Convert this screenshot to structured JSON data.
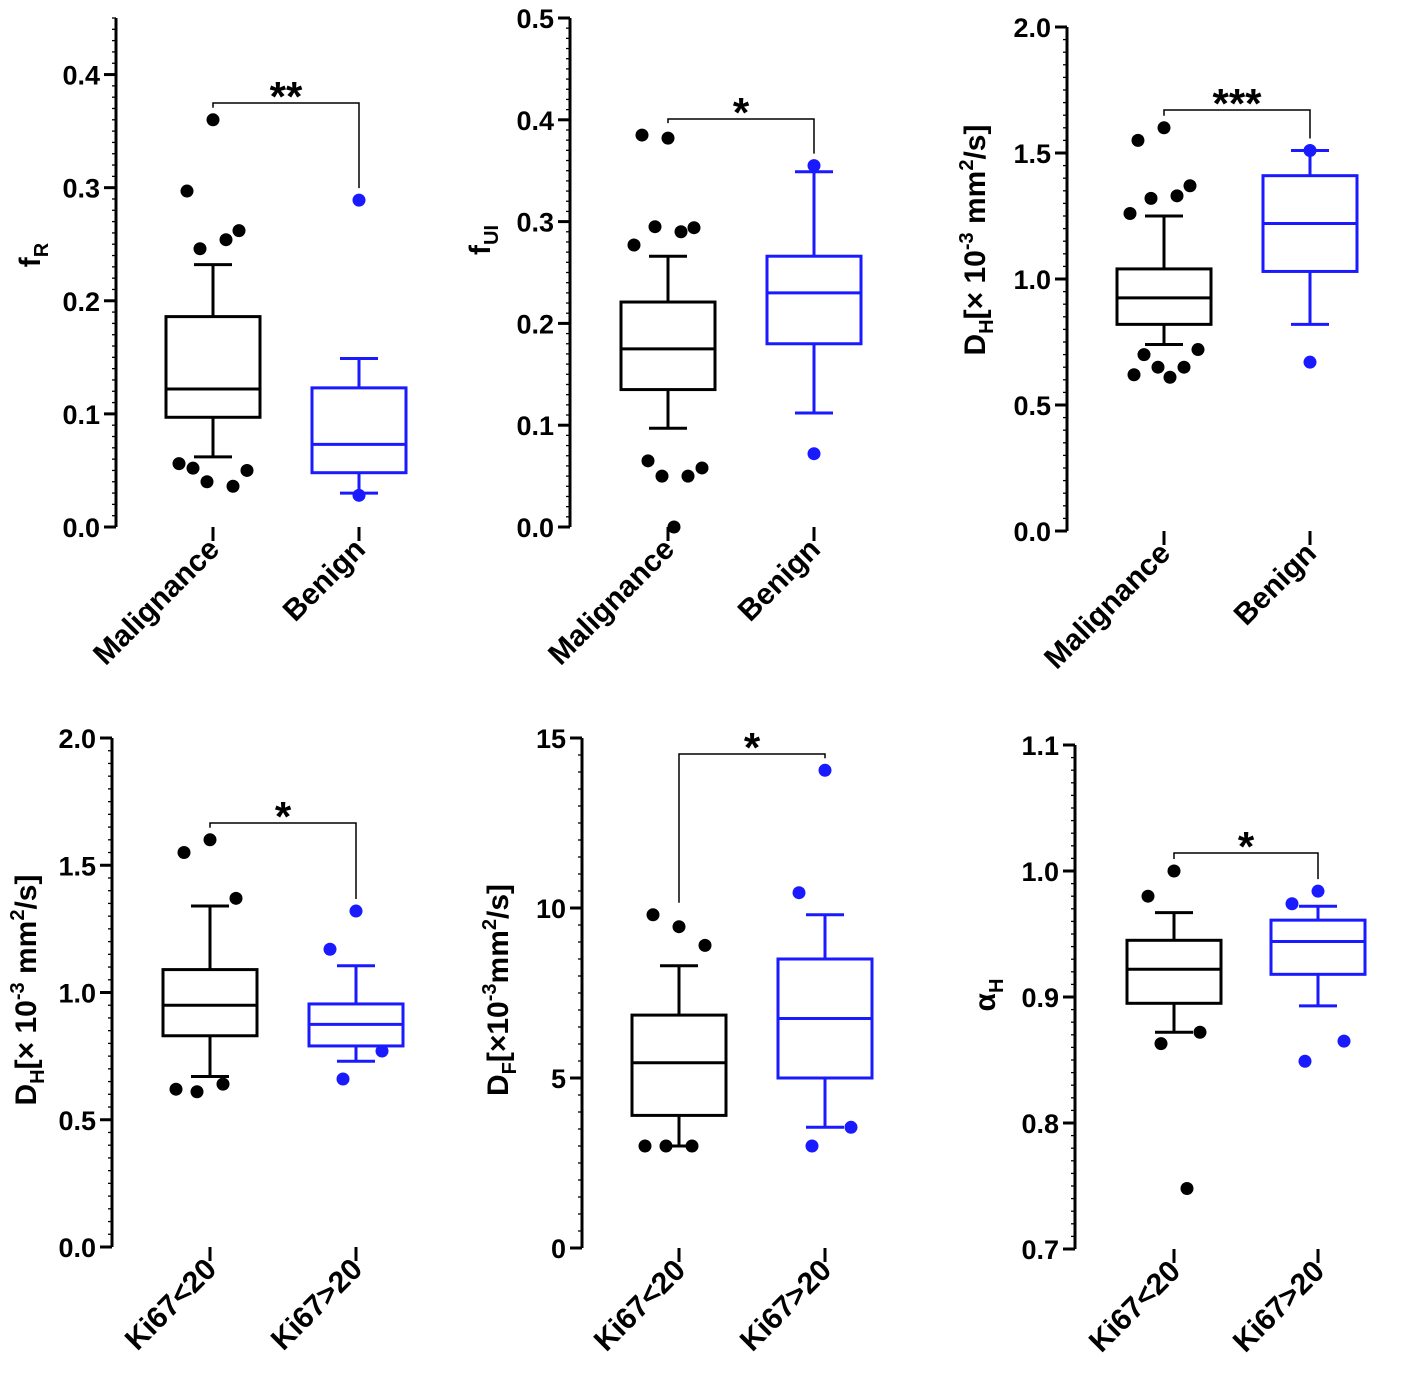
{
  "figure": "Box plots of diffusion parameters by group",
  "colors": {
    "group1": "#000000",
    "group2": "#1a1aff",
    "axis": "#000000"
  },
  "chart_data": [
    {
      "type": "box",
      "ylabel_main": "f",
      "ylabel_sub": "R",
      "ylim": [
        0,
        0.45
      ],
      "yticks": [
        0.0,
        0.1,
        0.2,
        0.3,
        0.4
      ],
      "yticklabels": [
        "0.0",
        "0.1",
        "0.2",
        "0.3",
        "0.4"
      ],
      "categories": [
        "Malignance",
        "Benign"
      ],
      "significance": "**",
      "boxes": [
        {
          "name": "Malignance",
          "min": 0.062,
          "q1": 0.097,
          "median": 0.122,
          "q3": 0.186,
          "max": 0.232,
          "outliers": [
            0.36,
            0.297,
            0.262,
            0.246,
            0.254,
            0.056,
            0.05,
            0.052,
            0.036,
            0.04
          ]
        },
        {
          "name": "Benign",
          "min": 0.03,
          "q1": 0.048,
          "median": 0.073,
          "q3": 0.123,
          "max": 0.149,
          "outliers": [
            0.289,
            0.028
          ]
        }
      ]
    },
    {
      "type": "box",
      "ylabel_main": "f",
      "ylabel_sub": "UI",
      "ylim": [
        0,
        0.5
      ],
      "yticks": [
        0.0,
        0.1,
        0.2,
        0.3,
        0.4,
        0.5
      ],
      "yticklabels": [
        "0.0",
        "0.1",
        "0.2",
        "0.3",
        "0.4",
        "0.5"
      ],
      "categories": [
        "Malignance",
        "Benign"
      ],
      "significance": "*",
      "boxes": [
        {
          "name": "Malignance",
          "min": 0.097,
          "q1": 0.135,
          "median": 0.175,
          "q3": 0.221,
          "max": 0.266,
          "outliers": [
            0.382,
            0.385,
            0.294,
            0.295,
            0.29,
            0.277,
            0.058,
            0.065,
            0.05,
            0.05,
            0.0
          ]
        },
        {
          "name": "Benign",
          "min": 0.112,
          "q1": 0.18,
          "median": 0.23,
          "q3": 0.266,
          "max": 0.349,
          "outliers": [
            0.355,
            0.072
          ]
        }
      ]
    },
    {
      "type": "box",
      "ylabel_main": "D",
      "ylabel_sub": "H",
      "ylabel_mid": "[× 10",
      "ylabel_sup": "-3",
      "ylabel_rest": " mm",
      "ylabel_sup2": "2",
      "ylabel_end": "/s]",
      "ylim": [
        0,
        2.0
      ],
      "yticks": [
        0.0,
        0.5,
        1.0,
        1.5,
        2.0
      ],
      "yticklabels": [
        "0.0",
        "0.5",
        "1.0",
        "1.5",
        "2.0"
      ],
      "categories": [
        "Malignance",
        "Benign"
      ],
      "significance": "***",
      "boxes": [
        {
          "name": "Malignance",
          "min": 0.74,
          "q1": 0.82,
          "median": 0.925,
          "q3": 1.04,
          "max": 1.25,
          "outliers": [
            1.6,
            1.55,
            1.37,
            1.32,
            1.33,
            1.26,
            0.72,
            0.7,
            0.65,
            0.65,
            0.61,
            0.62
          ]
        },
        {
          "name": "Benign",
          "min": 0.82,
          "q1": 1.03,
          "median": 1.22,
          "q3": 1.41,
          "max": 1.51,
          "outliers": [
            1.51,
            0.67
          ]
        }
      ]
    },
    {
      "type": "box",
      "ylabel_main": "D",
      "ylabel_sub": "H",
      "ylabel_mid": "[× 10",
      "ylabel_sup": "-3",
      "ylabel_rest": " mm",
      "ylabel_sup2": "2",
      "ylabel_end": "/s]",
      "ylim": [
        0,
        2.0
      ],
      "yticks": [
        0.0,
        0.5,
        1.0,
        1.5,
        2.0
      ],
      "yticklabels": [
        "0.0",
        "0.5",
        "1.0",
        "1.5",
        "2.0"
      ],
      "categories": [
        "Ki67<20",
        "Ki67>20"
      ],
      "significance": "*",
      "boxes": [
        {
          "name": "Ki67<20",
          "min": 0.67,
          "q1": 0.83,
          "median": 0.95,
          "q3": 1.09,
          "max": 1.34,
          "outliers": [
            1.6,
            1.55,
            1.37,
            0.61,
            0.64,
            0.62
          ]
        },
        {
          "name": "Ki67>20",
          "min": 0.73,
          "q1": 0.79,
          "median": 0.875,
          "q3": 0.955,
          "max": 1.105,
          "outliers": [
            1.32,
            1.17,
            0.77,
            0.66
          ]
        }
      ]
    },
    {
      "type": "box",
      "ylabel_main": "D",
      "ylabel_sub": "F",
      "ylabel_mid": "[×10",
      "ylabel_sup": "-3",
      "ylabel_rest": "mm",
      "ylabel_sup2": "2",
      "ylabel_end": "/s]",
      "ylim": [
        0,
        15
      ],
      "yticks": [
        0,
        5,
        10,
        15
      ],
      "yticklabels": [
        "0",
        "5",
        "10",
        "15"
      ],
      "categories": [
        "Ki67<20",
        "Ki67>20"
      ],
      "significance": "*",
      "boxes": [
        {
          "name": "Ki67<20",
          "min": 3.0,
          "q1": 3.9,
          "median": 5.45,
          "q3": 6.85,
          "max": 8.3,
          "outliers": [
            9.45,
            9.8,
            8.9,
            3.0,
            3.0,
            3.0
          ]
        },
        {
          "name": "Ki67>20",
          "min": 3.55,
          "q1": 5.0,
          "median": 6.75,
          "q3": 8.5,
          "max": 9.8,
          "outliers": [
            14.05,
            10.45,
            3.55,
            3.0
          ]
        }
      ]
    },
    {
      "type": "box",
      "ylabel_main": "α",
      "ylabel_sub": "H",
      "ylim": [
        0.7,
        1.1
      ],
      "yticks": [
        0.7,
        0.8,
        0.9,
        1.0,
        1.1
      ],
      "yticklabels": [
        "0.7",
        "0.8",
        "0.9",
        "1.0",
        "1.1"
      ],
      "categories": [
        "Ki67<20",
        "Ki67>20"
      ],
      "significance": "*",
      "boxes": [
        {
          "name": "Ki67<20",
          "min": 0.872,
          "q1": 0.895,
          "median": 0.922,
          "q3": 0.945,
          "max": 0.967,
          "outliers": [
            1.0,
            0.98,
            0.872,
            0.863,
            0.748
          ]
        },
        {
          "name": "Ki67>20",
          "min": 0.893,
          "q1": 0.918,
          "median": 0.944,
          "q3": 0.961,
          "max": 0.972,
          "outliers": [
            0.984,
            0.974,
            0.865,
            0.849
          ]
        }
      ]
    }
  ]
}
